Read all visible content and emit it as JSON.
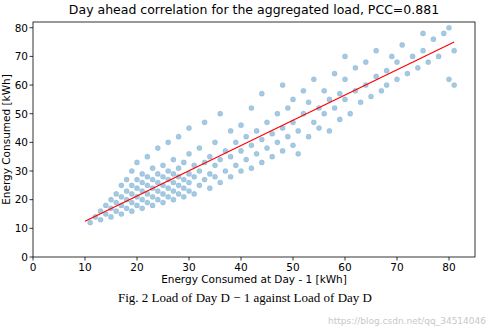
{
  "chart_data": {
    "type": "scatter",
    "title": "Day ahead correlation for the aggregated load, PCC=0.881",
    "x_label": "Energy Consumed at Day - 1 [kWh]",
    "y_label": "Energy Consumed [kWh]",
    "caption": "Fig. 2 Load of Day D − 1 against Load of Day D",
    "watermark": "https://blog.csdn.net/qq_34514046",
    "xlim": [
      0,
      85
    ],
    "ylim": [
      0,
      82
    ],
    "xticks": [
      0,
      10,
      20,
      30,
      40,
      50,
      60,
      70,
      80
    ],
    "yticks": [
      0,
      10,
      20,
      30,
      40,
      50,
      60,
      70,
      80
    ],
    "grid": false,
    "series": [
      {
        "type": "scatter",
        "color": "#1f77b4",
        "marker": "circle",
        "x": [
          11,
          12,
          13,
          13,
          14,
          14,
          15,
          15,
          15,
          16,
          16,
          16,
          17,
          17,
          17,
          17,
          18,
          18,
          18,
          18,
          19,
          19,
          19,
          19,
          19,
          20,
          20,
          20,
          20,
          20,
          21,
          21,
          21,
          21,
          21,
          22,
          22,
          22,
          22,
          22,
          23,
          23,
          23,
          23,
          23,
          24,
          24,
          24,
          24,
          24,
          25,
          25,
          25,
          25,
          25,
          26,
          26,
          26,
          26,
          26,
          27,
          27,
          27,
          27,
          27,
          28,
          28,
          28,
          28,
          28,
          29,
          29,
          29,
          29,
          30,
          30,
          30,
          30,
          30,
          31,
          31,
          31,
          32,
          32,
          32,
          33,
          33,
          33,
          34,
          34,
          34,
          35,
          35,
          35,
          36,
          36,
          36,
          37,
          37,
          38,
          38,
          38,
          39,
          39,
          40,
          40,
          40,
          41,
          41,
          42,
          42,
          42,
          43,
          43,
          44,
          44,
          44,
          45,
          45,
          46,
          46,
          47,
          47,
          48,
          48,
          48,
          49,
          49,
          50,
          50,
          50,
          51,
          51,
          52,
          52,
          53,
          53,
          54,
          54,
          55,
          55,
          56,
          56,
          57,
          57,
          58,
          58,
          59,
          59,
          60,
          60,
          60,
          61,
          62,
          62,
          63,
          64,
          64,
          65,
          66,
          66,
          67,
          68,
          68,
          69,
          70,
          70,
          71,
          72,
          73,
          74,
          75,
          75,
          76,
          77,
          78,
          79,
          80,
          80,
          81,
          81
        ],
        "values": [
          12,
          14,
          13,
          16,
          15,
          18,
          14,
          17,
          20,
          16,
          19,
          22,
          15,
          18,
          21,
          25,
          17,
          20,
          23,
          27,
          16,
          19,
          22,
          25,
          30,
          18,
          21,
          24,
          27,
          33,
          17,
          20,
          23,
          26,
          29,
          19,
          22,
          25,
          28,
          35,
          18,
          21,
          24,
          27,
          31,
          20,
          23,
          26,
          29,
          38,
          19,
          22,
          25,
          28,
          32,
          21,
          24,
          27,
          30,
          40,
          20,
          23,
          26,
          29,
          34,
          22,
          25,
          28,
          31,
          42,
          21,
          24,
          27,
          33,
          23,
          26,
          29,
          36,
          45,
          22,
          28,
          32,
          25,
          30,
          38,
          27,
          33,
          47,
          24,
          29,
          35,
          28,
          32,
          40,
          26,
          34,
          50,
          30,
          37,
          28,
          35,
          44,
          32,
          40,
          30,
          37,
          46,
          34,
          42,
          31,
          39,
          52,
          36,
          44,
          33,
          41,
          57,
          38,
          47,
          35,
          43,
          40,
          50,
          37,
          45,
          60,
          42,
          52,
          39,
          47,
          55,
          44,
          36,
          50,
          58,
          42,
          54,
          47,
          62,
          45,
          52,
          50,
          58,
          44,
          55,
          52,
          64,
          48,
          57,
          55,
          62,
          70,
          50,
          58,
          66,
          54,
          60,
          68,
          56,
          63,
          72,
          58,
          65,
          60,
          70,
          62,
          68,
          74,
          64,
          70,
          66,
          72,
          78,
          68,
          76,
          70,
          78,
          80,
          62,
          72,
          60
        ]
      },
      {
        "type": "line",
        "color": "red",
        "line_style": "solid",
        "x": [
          10,
          81
        ],
        "values": [
          12.5,
          75
        ]
      }
    ]
  }
}
